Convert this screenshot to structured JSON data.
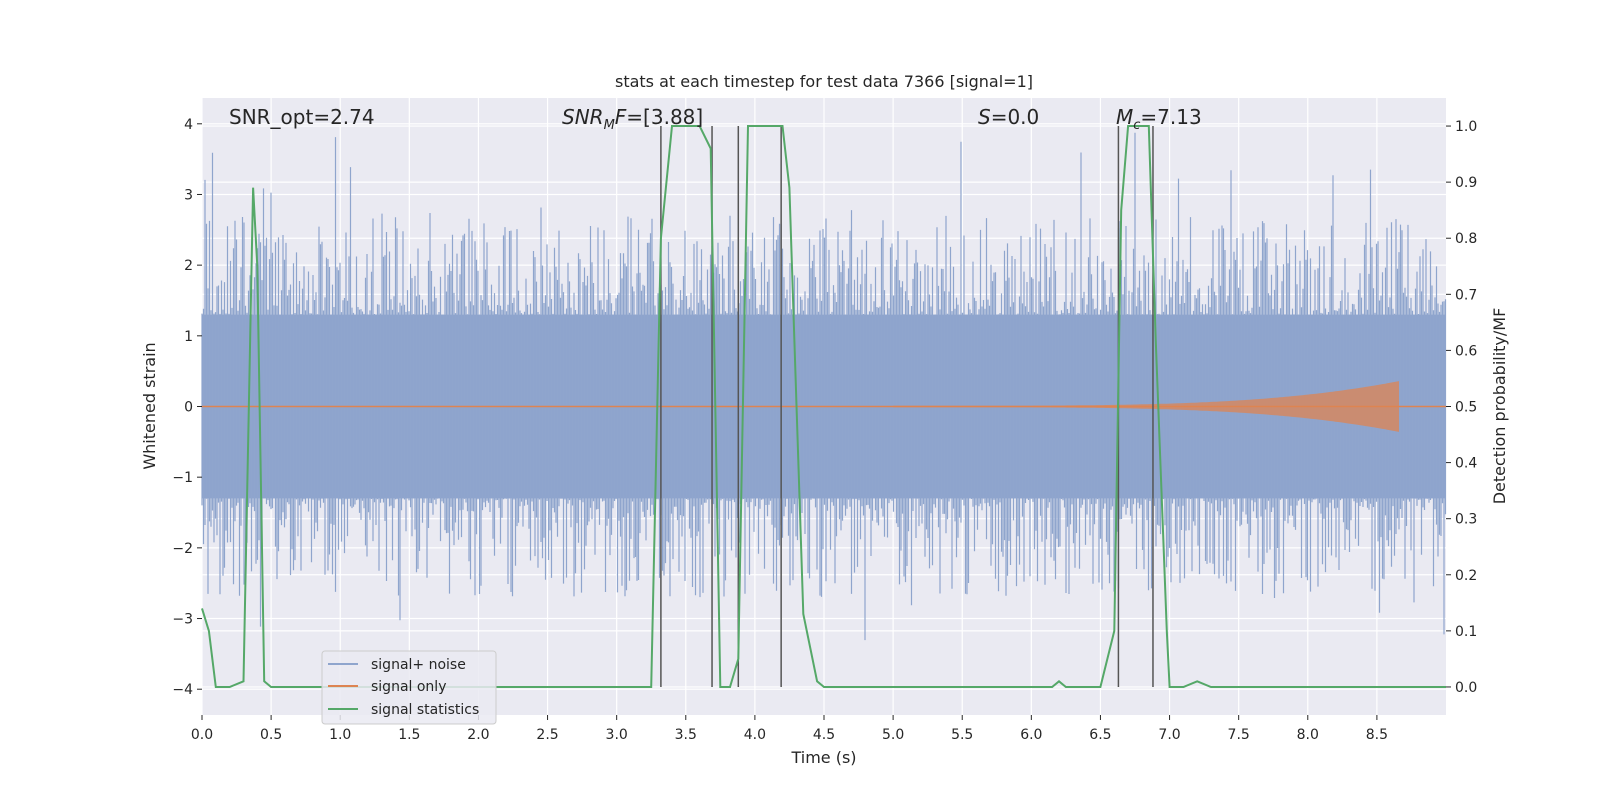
{
  "chart_data": {
    "type": "line",
    "title": "stats at each timestep for test data 7366 [signal=1]",
    "xlabel": "Time (s)",
    "ylabel_left": "Whitened strain",
    "ylabel_right": "Detection probability/MF",
    "xlim": [
      0.0,
      9.0
    ],
    "ylim_left": [
      -4.0,
      4.0
    ],
    "ylim_right": [
      -0.05,
      1.05
    ],
    "x_ticks": [
      "0.0",
      "0.5",
      "1.0",
      "1.5",
      "2.0",
      "2.5",
      "3.0",
      "3.5",
      "4.0",
      "4.5",
      "5.0",
      "5.5",
      "6.0",
      "6.5",
      "7.0",
      "7.5",
      "8.0",
      "8.5"
    ],
    "y_ticks_left": [
      "4",
      "3",
      "2",
      "1",
      "0",
      "−1",
      "−2",
      "−3",
      "−4"
    ],
    "y_ticks_right": [
      "1.0",
      "0.9",
      "0.8",
      "0.7",
      "0.6",
      "0.5",
      "0.4",
      "0.3",
      "0.2",
      "0.1",
      "0.0"
    ],
    "grid": true,
    "legend_position": "lower-left",
    "annotations": [
      {
        "text": "SNR_opt=2.74",
        "x": 0.2
      },
      {
        "text": "SNR_MF=[3.88]",
        "x": 2.6
      },
      {
        "text": "S=0.0",
        "x": 5.6
      },
      {
        "text": "M_c=7.13",
        "x": 6.6
      }
    ],
    "series": [
      {
        "name": "signal+ noise",
        "color": "#8fa5cd",
        "description_level": "noise band roughly ±1.3 with spikes up to ±4",
        "envelope_typical": 1.3,
        "envelope_max": 4.0
      },
      {
        "name": "signal only",
        "color": "#dd8452",
        "chirp_start": 5.0,
        "chirp_end": 8.66,
        "chirp_peak_amplitude": 0.35
      },
      {
        "name": "signal statistics",
        "color": "#55a868",
        "x": [
          0.0,
          0.05,
          0.1,
          0.2,
          0.3,
          0.37,
          0.4,
          0.45,
          0.5,
          1.0,
          2.0,
          3.0,
          3.25,
          3.32,
          3.4,
          3.6,
          3.68,
          3.75,
          3.82,
          3.88,
          3.95,
          4.0,
          4.2,
          4.25,
          4.35,
          4.45,
          4.5,
          5.0,
          6.0,
          6.15,
          6.2,
          6.25,
          6.5,
          6.6,
          6.65,
          6.7,
          6.85,
          6.9,
          6.98,
          7.0,
          7.1,
          7.2,
          7.3,
          8.0,
          9.0
        ],
        "y": [
          0.14,
          0.1,
          0.0,
          0.0,
          0.01,
          0.89,
          0.75,
          0.01,
          0.0,
          0.0,
          0.0,
          0.0,
          0.0,
          0.8,
          1.0,
          1.0,
          0.96,
          0.0,
          0.0,
          0.05,
          1.0,
          1.0,
          1.0,
          0.89,
          0.13,
          0.01,
          0.0,
          0.0,
          0.0,
          0.0,
          0.01,
          0.0,
          0.0,
          0.1,
          0.85,
          1.0,
          1.0,
          0.62,
          0.1,
          0.0,
          0.0,
          0.01,
          0.0,
          0.0,
          0.0
        ]
      }
    ],
    "vertical_markers": [
      3.32,
      3.69,
      3.88,
      4.19,
      6.63,
      6.88
    ]
  }
}
